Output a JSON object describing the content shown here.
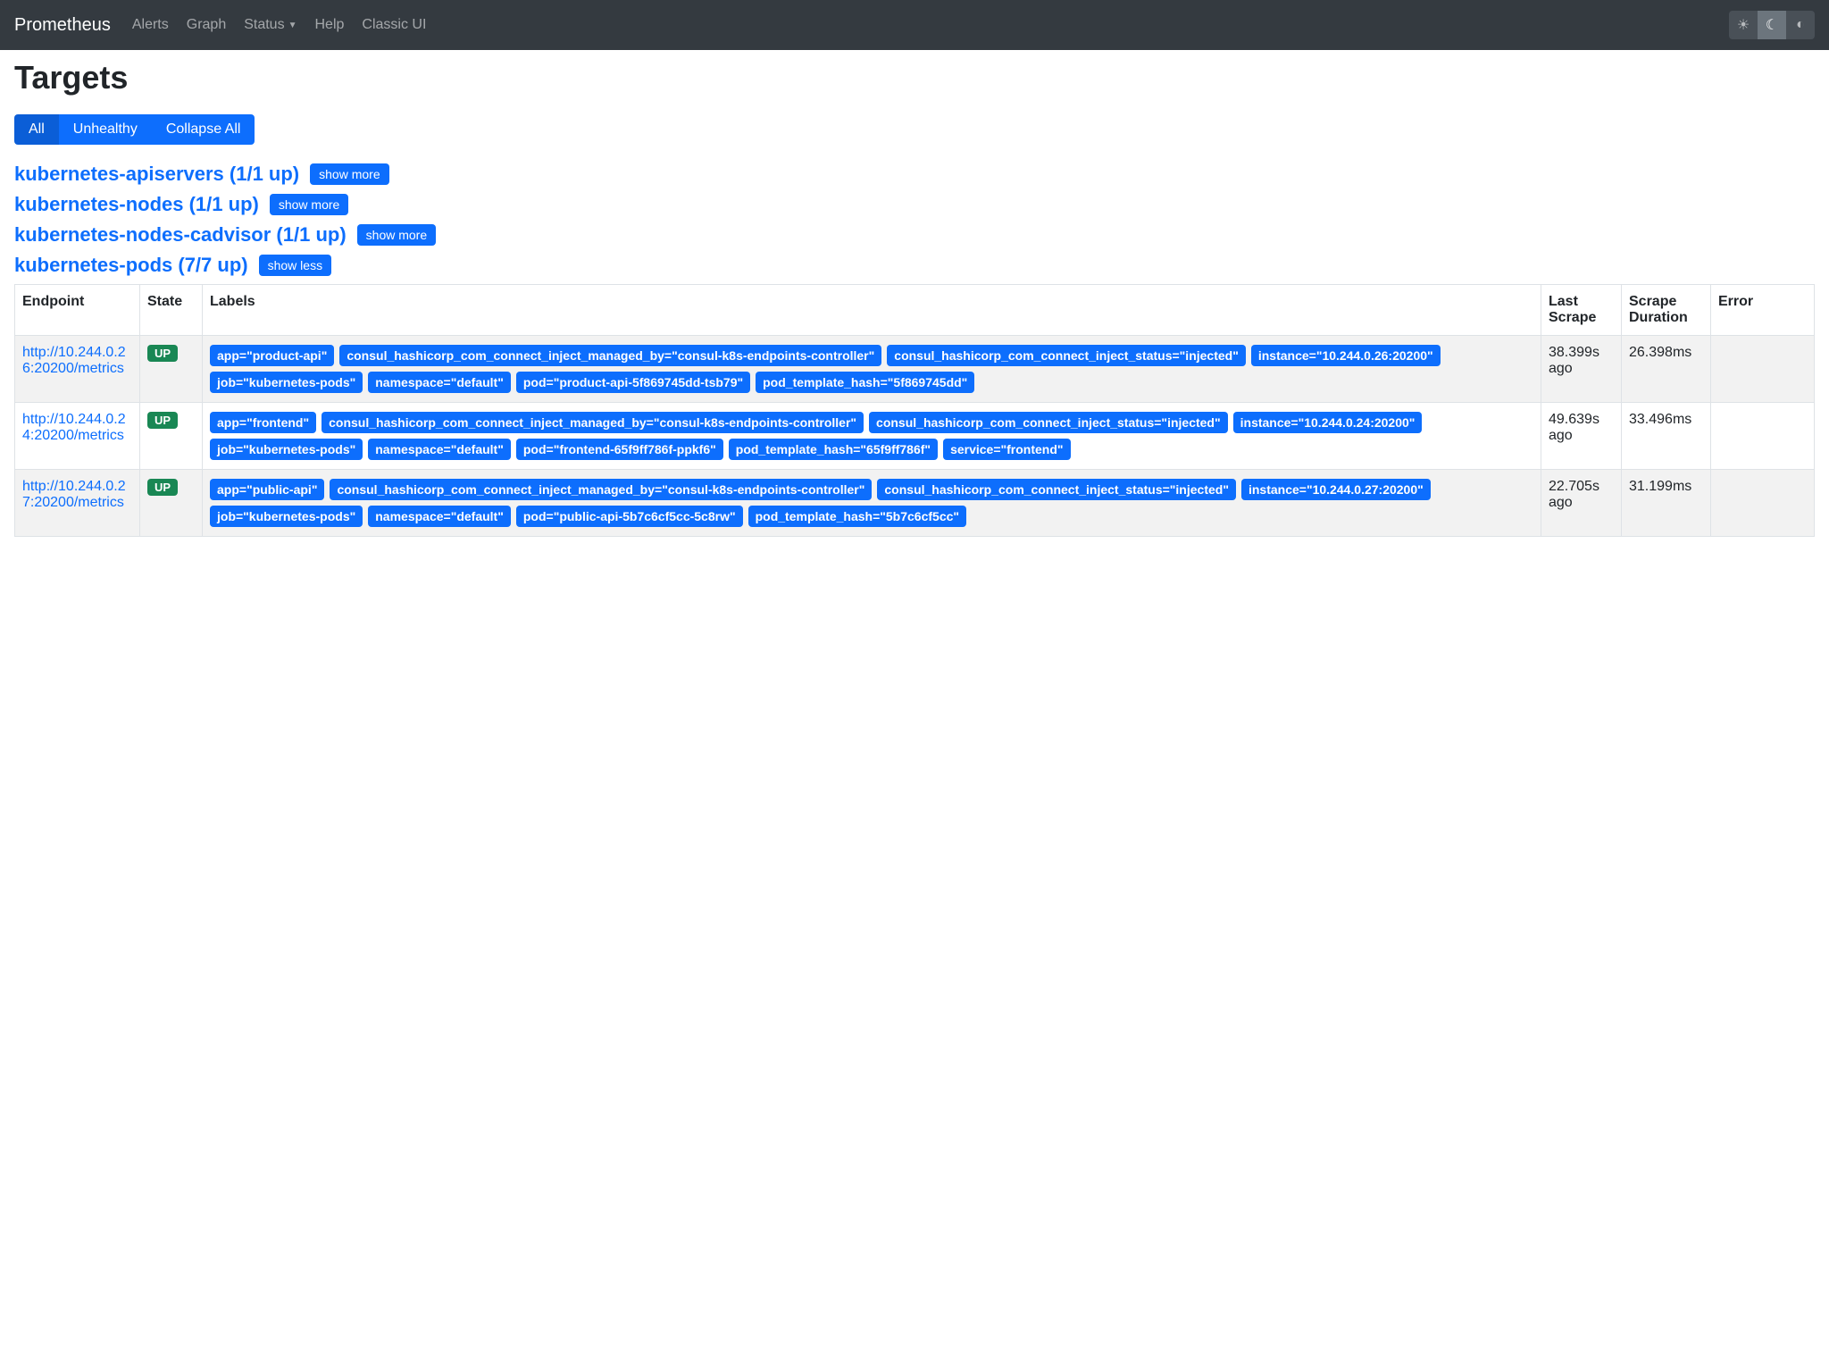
{
  "navbar": {
    "brand": "Prometheus",
    "links": {
      "alerts": "Alerts",
      "graph": "Graph",
      "status": "Status",
      "help": "Help",
      "classic": "Classic UI"
    }
  },
  "page": {
    "title": "Targets",
    "filters": {
      "all": "All",
      "unhealthy": "Unhealthy",
      "collapse": "Collapse All"
    }
  },
  "jobs": [
    {
      "name": "kubernetes-apiservers (1/1 up)",
      "btn": "show more"
    },
    {
      "name": "kubernetes-nodes (1/1 up)",
      "btn": "show more"
    },
    {
      "name": "kubernetes-nodes-cadvisor (1/1 up)",
      "btn": "show more"
    },
    {
      "name": "kubernetes-pods (7/7 up)",
      "btn": "show less"
    }
  ],
  "table": {
    "headers": {
      "endpoint": "Endpoint",
      "state": "State",
      "labels": "Labels",
      "last": "Last Scrape",
      "dur": "Scrape Duration",
      "err": "Error"
    }
  },
  "targets": [
    {
      "endpoint": "http://10.244.0.26:20200/metrics",
      "state": "UP",
      "last": "38.399s ago",
      "dur": "26.398ms",
      "labels": [
        "app=\"product-api\"",
        "consul_hashicorp_com_connect_inject_managed_by=\"consul-k8s-endpoints-controller\"",
        "consul_hashicorp_com_connect_inject_status=\"injected\"",
        "instance=\"10.244.0.26:20200\"",
        "job=\"kubernetes-pods\"",
        "namespace=\"default\"",
        "pod=\"product-api-5f869745dd-tsb79\"",
        "pod_template_hash=\"5f869745dd\""
      ]
    },
    {
      "endpoint": "http://10.244.0.24:20200/metrics",
      "state": "UP",
      "last": "49.639s ago",
      "dur": "33.496ms",
      "labels": [
        "app=\"frontend\"",
        "consul_hashicorp_com_connect_inject_managed_by=\"consul-k8s-endpoints-controller\"",
        "consul_hashicorp_com_connect_inject_status=\"injected\"",
        "instance=\"10.244.0.24:20200\"",
        "job=\"kubernetes-pods\"",
        "namespace=\"default\"",
        "pod=\"frontend-65f9ff786f-ppkf6\"",
        "pod_template_hash=\"65f9ff786f\"",
        "service=\"frontend\""
      ]
    },
    {
      "endpoint": "http://10.244.0.27:20200/metrics",
      "state": "UP",
      "last": "22.705s ago",
      "dur": "31.199ms",
      "labels": [
        "app=\"public-api\"",
        "consul_hashicorp_com_connect_inject_managed_by=\"consul-k8s-endpoints-controller\"",
        "consul_hashicorp_com_connect_inject_status=\"injected\"",
        "instance=\"10.244.0.27:20200\"",
        "job=\"kubernetes-pods\"",
        "namespace=\"default\"",
        "pod=\"public-api-5b7c6cf5cc-5c8rw\"",
        "pod_template_hash=\"5b7c6cf5cc\""
      ]
    }
  ],
  "colors": {
    "primary": "#0d6efd",
    "navbar": "#343a40",
    "success": "#198754",
    "stripe": "#f2f2f2",
    "border": "#dee2e6"
  }
}
